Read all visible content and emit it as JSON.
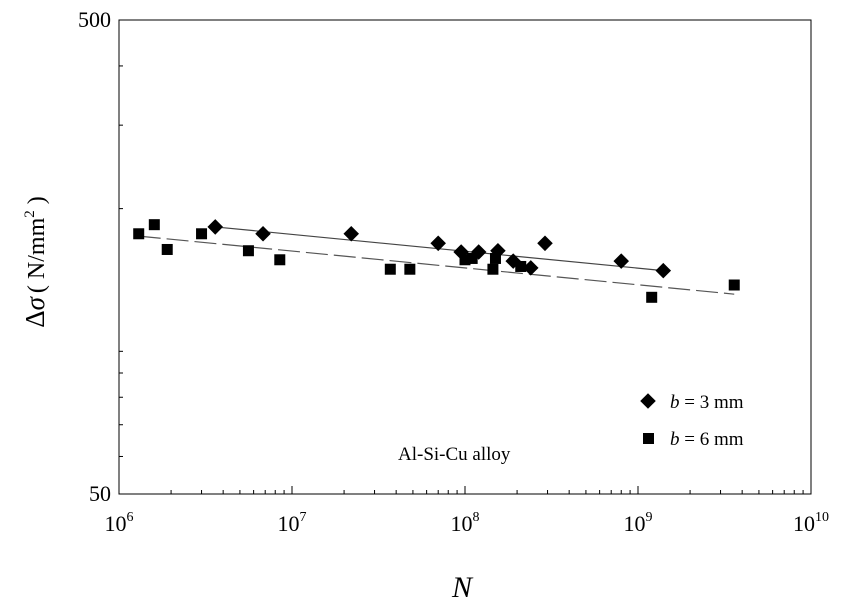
{
  "chart_data": {
    "type": "scatter",
    "title": "",
    "xlabel": "N",
    "ylabel": "Δσ ( N/mm² )",
    "ylabel_parts": {
      "delta": "Δ",
      "sigma": "σ",
      "open": "( N/mm",
      "sup": "2",
      "close": " )"
    },
    "x_scale": "log",
    "y_scale": "log",
    "xlim": [
      1000000,
      10000000000
    ],
    "ylim": [
      50,
      500
    ],
    "x_ticks": [
      {
        "value": 1000000,
        "base": "10",
        "exp": "6"
      },
      {
        "value": 10000000,
        "base": "10",
        "exp": "7"
      },
      {
        "value": 100000000,
        "base": "10",
        "exp": "8"
      },
      {
        "value": 1000000000,
        "base": "10",
        "exp": "9"
      },
      {
        "value": 10000000000,
        "base": "10",
        "exp": "10"
      }
    ],
    "y_ticks": [
      {
        "value": 50,
        "label": "50"
      },
      {
        "value": 500,
        "label": "500"
      }
    ],
    "y_minor_ticks": [
      60,
      70,
      80,
      90,
      100,
      200,
      300,
      400
    ],
    "grid": false,
    "legend_position": "bottom-right",
    "annotation": "Al-Si-Cu alloy",
    "series": [
      {
        "name": "b = 3 mm",
        "name_parts": {
          "var": "b",
          "rest": " = 3 mm"
        },
        "marker": "diamond",
        "color": "#000000",
        "points": [
          [
            3600000,
            183
          ],
          [
            6800000,
            177
          ],
          [
            22000000,
            177
          ],
          [
            70000000,
            169
          ],
          [
            95000000,
            162
          ],
          [
            120000000,
            162
          ],
          [
            155000000,
            163
          ],
          [
            190000000,
            155
          ],
          [
            240000000,
            150
          ],
          [
            290000000,
            169
          ],
          [
            800000000,
            155
          ],
          [
            1400000000,
            148
          ]
        ],
        "fit": {
          "style": "solid",
          "x": [
            3600000,
            1400000000
          ],
          "y": [
            183,
            148
          ]
        }
      },
      {
        "name": "b = 6 mm",
        "name_parts": {
          "var": "b",
          "rest": " = 6 mm"
        },
        "marker": "square",
        "color": "#000000",
        "points": [
          [
            1300000,
            177
          ],
          [
            1600000,
            185
          ],
          [
            1900000,
            164
          ],
          [
            3000000,
            177
          ],
          [
            5600000,
            163
          ],
          [
            8500000,
            156
          ],
          [
            37000000,
            149
          ],
          [
            48000000,
            149
          ],
          [
            100000000,
            156
          ],
          [
            110000000,
            157
          ],
          [
            145000000,
            149
          ],
          [
            150000000,
            157
          ],
          [
            210000000,
            151
          ],
          [
            1200000000,
            130
          ],
          [
            3600000000,
            138
          ]
        ],
        "fit": {
          "style": "dashed",
          "x": [
            1300000,
            3600000000
          ],
          "y": [
            175,
            132
          ]
        }
      }
    ]
  }
}
